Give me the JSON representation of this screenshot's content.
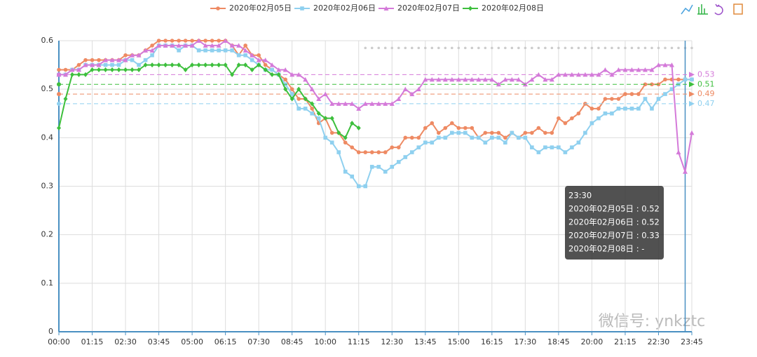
{
  "chart_data": {
    "type": "line",
    "categories": [
      "00:00",
      null,
      null,
      null,
      null,
      "01:15",
      null,
      null,
      null,
      null,
      "02:30",
      null,
      null,
      null,
      null,
      "03:45",
      null,
      null,
      null,
      null,
      "05:00",
      null,
      null,
      null,
      null,
      "06:15",
      null,
      null,
      null,
      null,
      "07:30",
      null,
      null,
      null,
      null,
      "08:45",
      null,
      null,
      null,
      null,
      "10:00",
      null,
      null,
      null,
      null,
      "11:15",
      null,
      null,
      null,
      null,
      "12:30",
      null,
      null,
      null,
      null,
      "13:45",
      null,
      null,
      null,
      null,
      "15:00",
      null,
      null,
      null,
      null,
      "16:15",
      null,
      null,
      null,
      null,
      "17:30",
      null,
      null,
      null,
      null,
      "18:45",
      null,
      null,
      null,
      null,
      "20:00",
      null,
      null,
      null,
      null,
      "21:15",
      null,
      null,
      null,
      null,
      "22:30",
      null,
      null,
      null,
      null,
      "23:45"
    ],
    "series": [
      {
        "name": "2020年02月05日",
        "color": "#ee8a63",
        "symbol": "circle",
        "average": 0.49,
        "average_label": "0.49",
        "values": [
          0.54,
          0.54,
          0.54,
          0.55,
          0.56,
          0.56,
          0.56,
          0.56,
          0.56,
          0.56,
          0.57,
          0.57,
          0.57,
          0.58,
          0.59,
          0.6,
          0.6,
          0.6,
          0.6,
          0.6,
          0.6,
          0.6,
          0.6,
          0.6,
          0.6,
          0.6,
          0.59,
          0.57,
          0.59,
          0.57,
          0.57,
          0.55,
          0.54,
          0.53,
          0.52,
          0.5,
          0.48,
          0.48,
          0.46,
          0.43,
          0.44,
          0.41,
          0.41,
          0.39,
          0.38,
          0.37,
          0.37,
          0.37,
          0.37,
          0.37,
          0.38,
          0.38,
          0.4,
          0.4,
          0.4,
          0.42,
          0.43,
          0.41,
          0.42,
          0.43,
          0.42,
          0.42,
          0.42,
          0.4,
          0.41,
          0.41,
          0.41,
          0.4,
          0.41,
          0.4,
          0.41,
          0.41,
          0.42,
          0.41,
          0.41,
          0.44,
          0.43,
          0.44,
          0.45,
          0.47,
          0.46,
          0.46,
          0.48,
          0.48,
          0.48,
          0.49,
          0.49,
          0.49,
          0.51,
          0.51,
          0.51,
          0.52,
          0.52,
          0.52,
          0.52,
          0.52
        ]
      },
      {
        "name": "2020年02月06日",
        "color": "#8fd0ef",
        "symbol": "rect",
        "average": 0.47,
        "average_label": "0.47",
        "values": [
          0.53,
          0.53,
          0.54,
          0.54,
          0.55,
          0.55,
          0.55,
          0.55,
          0.55,
          0.55,
          0.56,
          0.56,
          0.55,
          0.56,
          0.57,
          0.59,
          0.59,
          0.59,
          0.58,
          0.59,
          0.59,
          0.58,
          0.58,
          0.58,
          0.58,
          0.58,
          0.58,
          0.57,
          0.57,
          0.56,
          0.55,
          0.54,
          0.54,
          0.53,
          0.51,
          0.49,
          0.46,
          0.46,
          0.45,
          0.44,
          0.4,
          0.39,
          0.37,
          0.33,
          0.32,
          0.3,
          0.3,
          0.34,
          0.34,
          0.33,
          0.34,
          0.35,
          0.36,
          0.37,
          0.38,
          0.39,
          0.39,
          0.4,
          0.4,
          0.41,
          0.41,
          0.41,
          0.4,
          0.4,
          0.39,
          0.4,
          0.4,
          0.39,
          0.41,
          0.4,
          0.4,
          0.38,
          0.37,
          0.38,
          0.38,
          0.38,
          0.37,
          0.38,
          0.39,
          0.41,
          0.43,
          0.44,
          0.45,
          0.45,
          0.46,
          0.46,
          0.46,
          0.46,
          0.48,
          0.46,
          0.48,
          0.49,
          0.5,
          0.51,
          0.52,
          0.52
        ]
      },
      {
        "name": "2020年02月07日",
        "color": "#d47ad9",
        "symbol": "triangle",
        "average": 0.53,
        "average_label": "0.53",
        "values": [
          0.53,
          0.53,
          0.54,
          0.54,
          0.55,
          0.55,
          0.55,
          0.56,
          0.56,
          0.56,
          0.56,
          0.57,
          0.57,
          0.58,
          0.58,
          0.59,
          0.59,
          0.59,
          0.59,
          0.59,
          0.59,
          0.6,
          0.59,
          0.59,
          0.59,
          0.6,
          0.59,
          0.59,
          0.58,
          0.57,
          0.56,
          0.56,
          0.55,
          0.54,
          0.54,
          0.53,
          0.53,
          0.52,
          0.5,
          0.48,
          0.49,
          0.47,
          0.47,
          0.47,
          0.47,
          0.46,
          0.47,
          0.47,
          0.47,
          0.47,
          0.47,
          0.48,
          0.5,
          0.49,
          0.5,
          0.52,
          0.52,
          0.52,
          0.52,
          0.52,
          0.52,
          0.52,
          0.52,
          0.52,
          0.52,
          0.52,
          0.51,
          0.52,
          0.52,
          0.52,
          0.51,
          0.52,
          0.53,
          0.52,
          0.52,
          0.53,
          0.53,
          0.53,
          0.53,
          0.53,
          0.53,
          0.53,
          0.54,
          0.53,
          0.54,
          0.54,
          0.54,
          0.54,
          0.54,
          0.54,
          0.55,
          0.55,
          0.55,
          0.37,
          0.33,
          0.41
        ]
      },
      {
        "name": "2020年02月08日",
        "color": "#3dbf3d",
        "symbol": "diamond",
        "average": 0.51,
        "average_label": "0.51",
        "values": [
          0.42,
          0.48,
          0.53,
          0.53,
          0.53,
          0.54,
          0.54,
          0.54,
          0.54,
          0.54,
          0.54,
          0.54,
          0.54,
          0.55,
          0.55,
          0.55,
          0.55,
          0.55,
          0.55,
          0.54,
          0.55,
          0.55,
          0.55,
          0.55,
          0.55,
          0.55,
          0.53,
          0.55,
          0.55,
          0.54,
          0.55,
          0.54,
          0.53,
          0.53,
          0.5,
          0.48,
          0.5,
          0.48,
          0.47,
          0.45,
          0.44,
          0.44,
          0.41,
          0.4,
          0.43,
          0.42,
          null,
          null,
          null,
          null,
          null,
          null,
          null,
          null,
          null,
          null,
          null,
          null,
          null,
          null,
          null,
          null,
          null,
          null,
          null,
          null,
          null,
          null,
          null,
          null,
          null,
          null,
          null,
          null,
          null,
          null,
          null,
          null,
          null,
          null,
          null,
          null,
          null,
          null,
          null,
          null,
          null,
          null,
          null,
          null,
          null,
          null,
          null,
          null,
          null,
          null
        ]
      }
    ],
    "ylim": [
      0,
      0.6
    ],
    "yticks": [
      0,
      0.1,
      0.2,
      0.3,
      0.4,
      0.5,
      0.6
    ],
    "grid": true,
    "tooltip": {
      "title": "23:30",
      "lines": [
        "2020年02月05日 : 0.52",
        "2020年02月06日 : 0.52",
        "2020年02月07日 : 0.33",
        "2020年02月08日 : -"
      ]
    },
    "watermark": "微信号: ynkztc"
  }
}
